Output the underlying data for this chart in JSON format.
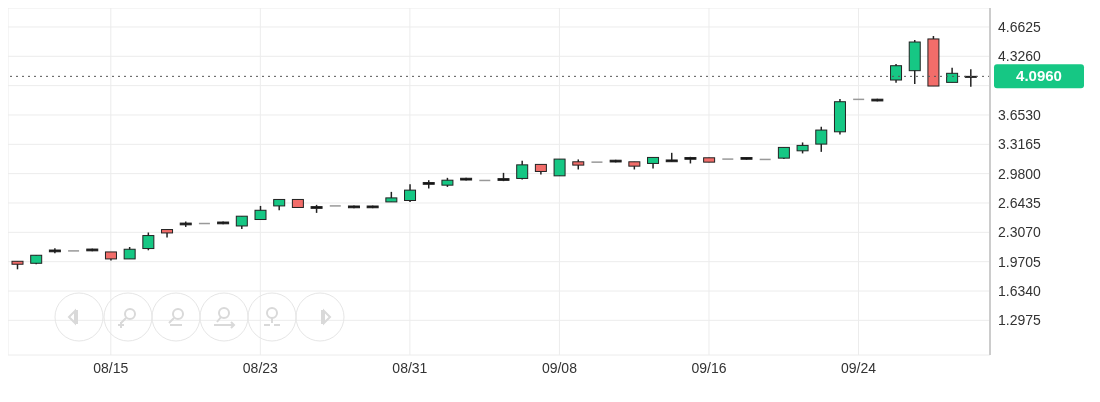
{
  "chart_data": {
    "type": "candlestick",
    "categories": [
      null,
      null,
      null,
      null,
      null,
      "08/15",
      null,
      null,
      null,
      null,
      null,
      null,
      null,
      "08/23",
      null,
      null,
      null,
      null,
      null,
      null,
      null,
      "08/31",
      null,
      null,
      null,
      null,
      null,
      null,
      null,
      "09/08",
      null,
      null,
      null,
      null,
      null,
      null,
      null,
      "09/16",
      null,
      null,
      null,
      null,
      null,
      null,
      null,
      "09/24",
      null,
      null,
      null,
      null,
      null,
      null
    ],
    "ohlc": [
      [
        1.975,
        1.975,
        1.883,
        1.941
      ],
      [
        1.952,
        2.044,
        1.941,
        2.044
      ],
      [
        2.104,
        2.124,
        2.067,
        2.084
      ],
      [
        2.094,
        2.094,
        2.094,
        2.094
      ],
      [
        2.115,
        2.12,
        2.09,
        2.095
      ],
      [
        2.082,
        2.082,
        1.983,
        2.002
      ],
      [
        2.002,
        2.139,
        2.002,
        2.113
      ],
      [
        2.121,
        2.305,
        2.101,
        2.27
      ],
      [
        2.339,
        2.339,
        2.247,
        2.3
      ],
      [
        2.413,
        2.431,
        2.369,
        2.393
      ],
      [
        2.408,
        2.408,
        2.408,
        2.408
      ],
      [
        2.425,
        2.43,
        2.4,
        2.405
      ],
      [
        2.38,
        2.492,
        2.346,
        2.492
      ],
      [
        2.454,
        2.61,
        2.454,
        2.56
      ],
      [
        2.61,
        2.684,
        2.561,
        2.684
      ],
      [
        2.684,
        2.684,
        2.592,
        2.592
      ],
      [
        2.602,
        2.622,
        2.53,
        2.582
      ],
      [
        2.61,
        2.61,
        2.61,
        2.61
      ],
      [
        2.609,
        2.614,
        2.584,
        2.589
      ],
      [
        2.609,
        2.614,
        2.584,
        2.589
      ],
      [
        2.656,
        2.771,
        2.656,
        2.702
      ],
      [
        2.672,
        2.859,
        2.656,
        2.791
      ],
      [
        2.878,
        2.905,
        2.81,
        2.858
      ],
      [
        2.848,
        2.932,
        2.828,
        2.905
      ],
      [
        2.927,
        2.932,
        2.902,
        2.907
      ],
      [
        2.902,
        2.902,
        2.902,
        2.902
      ],
      [
        2.923,
        2.989,
        2.894,
        2.903
      ],
      [
        2.925,
        3.127,
        2.913,
        3.081
      ],
      [
        3.086,
        3.086,
        2.971,
        3.005
      ],
      [
        2.955,
        3.147,
        2.955,
        3.147
      ],
      [
        3.116,
        3.143,
        3.028,
        3.078
      ],
      [
        3.112,
        3.112,
        3.112,
        3.112
      ],
      [
        3.134,
        3.139,
        3.109,
        3.114
      ],
      [
        3.116,
        3.116,
        3.028,
        3.066
      ],
      [
        3.097,
        3.166,
        3.04,
        3.166
      ],
      [
        3.137,
        3.219,
        3.117,
        3.117
      ],
      [
        3.165,
        3.173,
        3.097,
        3.145
      ],
      [
        3.162,
        3.162,
        3.112,
        3.112
      ],
      [
        3.147,
        3.147,
        3.147,
        3.147
      ],
      [
        3.165,
        3.17,
        3.14,
        3.145
      ],
      [
        3.143,
        3.143,
        3.143,
        3.143
      ],
      [
        3.158,
        3.281,
        3.147,
        3.281
      ],
      [
        3.242,
        3.338,
        3.212,
        3.304
      ],
      [
        3.319,
        3.518,
        3.23,
        3.48
      ],
      [
        3.46,
        3.836,
        3.43,
        3.805
      ],
      [
        3.832,
        3.832,
        3.832,
        3.832
      ],
      [
        3.834,
        3.839,
        3.809,
        3.814
      ],
      [
        4.054,
        4.238,
        4.023,
        4.218
      ],
      [
        4.161,
        4.513,
        4.008,
        4.49
      ],
      [
        4.525,
        4.559,
        3.985,
        3.985
      ],
      [
        4.027,
        4.195,
        4.027,
        4.131
      ],
      [
        4.086,
        4.177,
        3.977,
        4.096
      ]
    ],
    "colors": [
      "#f26d6a",
      "#16c784",
      "#111111",
      "#999999",
      "#111111",
      "#f26d6a",
      "#16c784",
      "#16c784",
      "#f26d6a",
      "#111111",
      "#999999",
      "#111111",
      "#16c784",
      "#16c784",
      "#16c784",
      "#f26d6a",
      "#111111",
      "#999999",
      "#111111",
      "#111111",
      "#16c784",
      "#16c784",
      "#111111",
      "#16c784",
      "#111111",
      "#999999",
      "#111111",
      "#16c784",
      "#f26d6a",
      "#16c784",
      "#f26d6a",
      "#999999",
      "#111111",
      "#f26d6a",
      "#16c784",
      "#111111",
      "#111111",
      "#f26d6a",
      "#999999",
      "#111111",
      "#999999",
      "#16c784",
      "#16c784",
      "#16c784",
      "#16c784",
      "#999999",
      "#111111",
      "#16c784",
      "#16c784",
      "#f26d6a",
      "#16c784",
      "#111111"
    ],
    "ylim": [
      0.9,
      4.88
    ],
    "yticks": [
      1.2975,
      {
        "value": 1.634,
        "label": "1.6340"
      },
      1.9705,
      {
        "value": 2.307,
        "label": "2.3070"
      },
      2.6435,
      {
        "value": 2.98,
        "label": "2.9800"
      },
      3.3165,
      {
        "value": 3.653,
        "label": "3.6530"
      },
      {
        "value": 3.9895,
        "label": null
      },
      {
        "value": 4.326,
        "label": "4.3260"
      },
      4.6625
    ],
    "grid": true,
    "ref_lines": [
      {
        "axis": "y",
        "value": 4.096,
        "label": "4.0960",
        "color": "#555555",
        "line_style": "dotted"
      }
    ]
  }
}
